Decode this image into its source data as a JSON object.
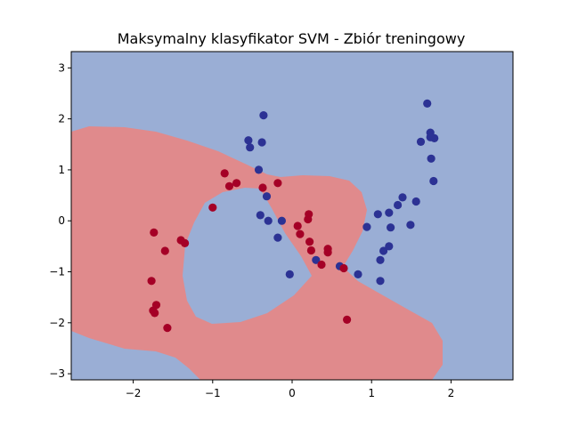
{
  "chart_data": {
    "type": "scatter",
    "title": "Maksymalny klasyfikator SVM - Zbiór treningowy",
    "xlabel": "",
    "ylabel": "",
    "xlim": [
      -2.78,
      2.78
    ],
    "ylim": [
      -3.12,
      3.32
    ],
    "xticks": [
      -2,
      -1,
      0,
      1,
      2
    ],
    "yticks": [
      -3,
      -2,
      -1,
      0,
      1,
      2,
      3
    ],
    "xtick_labels": [
      "−2",
      "−1",
      "0",
      "1",
      "2"
    ],
    "ytick_labels": [
      "−3",
      "−2",
      "−1",
      "0",
      "1",
      "2",
      "3"
    ],
    "grid": false,
    "legend": "none",
    "background_region_color": "#9aaed5",
    "decision_region_color": "#e08a8c",
    "series": [
      {
        "class": "blue",
        "color": "#2c3294",
        "points": [
          [
            -0.36,
            2.07
          ],
          [
            -0.55,
            1.58
          ],
          [
            -0.38,
            1.54
          ],
          [
            -0.53,
            1.44
          ],
          [
            -0.42,
            1.0
          ],
          [
            -0.32,
            0.48
          ],
          [
            -0.4,
            0.11
          ],
          [
            -0.3,
            0.0
          ],
          [
            -0.13,
            0.0
          ],
          [
            -0.18,
            -0.33
          ],
          [
            -0.03,
            -1.05
          ],
          [
            0.3,
            -0.77
          ],
          [
            0.6,
            -0.89
          ],
          [
            0.83,
            -1.05
          ],
          [
            0.94,
            -0.12
          ],
          [
            1.08,
            0.13
          ],
          [
            1.22,
            0.16
          ],
          [
            1.33,
            0.31
          ],
          [
            1.39,
            0.46
          ],
          [
            1.24,
            -0.13
          ],
          [
            1.22,
            -0.5
          ],
          [
            1.15,
            -0.59
          ],
          [
            1.11,
            -0.77
          ],
          [
            1.11,
            -1.18
          ],
          [
            1.49,
            -0.08
          ],
          [
            1.56,
            0.38
          ],
          [
            1.62,
            1.55
          ],
          [
            1.7,
            2.3
          ],
          [
            1.74,
            1.73
          ],
          [
            1.79,
            1.62
          ],
          [
            1.74,
            1.64
          ],
          [
            1.75,
            1.22
          ],
          [
            1.78,
            0.78
          ]
        ]
      },
      {
        "class": "red",
        "color": "#a50026",
        "points": [
          [
            -0.85,
            0.93
          ],
          [
            -0.79,
            0.68
          ],
          [
            -0.7,
            0.74
          ],
          [
            -1.0,
            0.26
          ],
          [
            -0.37,
            0.65
          ],
          [
            -0.18,
            0.74
          ],
          [
            0.21,
            0.13
          ],
          [
            0.2,
            0.03
          ],
          [
            0.07,
            -0.1
          ],
          [
            0.1,
            -0.26
          ],
          [
            0.22,
            -0.41
          ],
          [
            0.24,
            -0.58
          ],
          [
            0.45,
            -0.55
          ],
          [
            0.45,
            -0.62
          ],
          [
            0.37,
            -0.86
          ],
          [
            0.65,
            -0.93
          ],
          [
            0.69,
            -1.94
          ],
          [
            -1.74,
            -0.23
          ],
          [
            -1.4,
            -0.38
          ],
          [
            -1.35,
            -0.44
          ],
          [
            -1.6,
            -0.59
          ],
          [
            -1.77,
            -1.18
          ],
          [
            -1.71,
            -1.65
          ],
          [
            -1.75,
            -1.76
          ],
          [
            -1.73,
            -1.81
          ],
          [
            -1.57,
            -2.1
          ]
        ]
      }
    ]
  }
}
